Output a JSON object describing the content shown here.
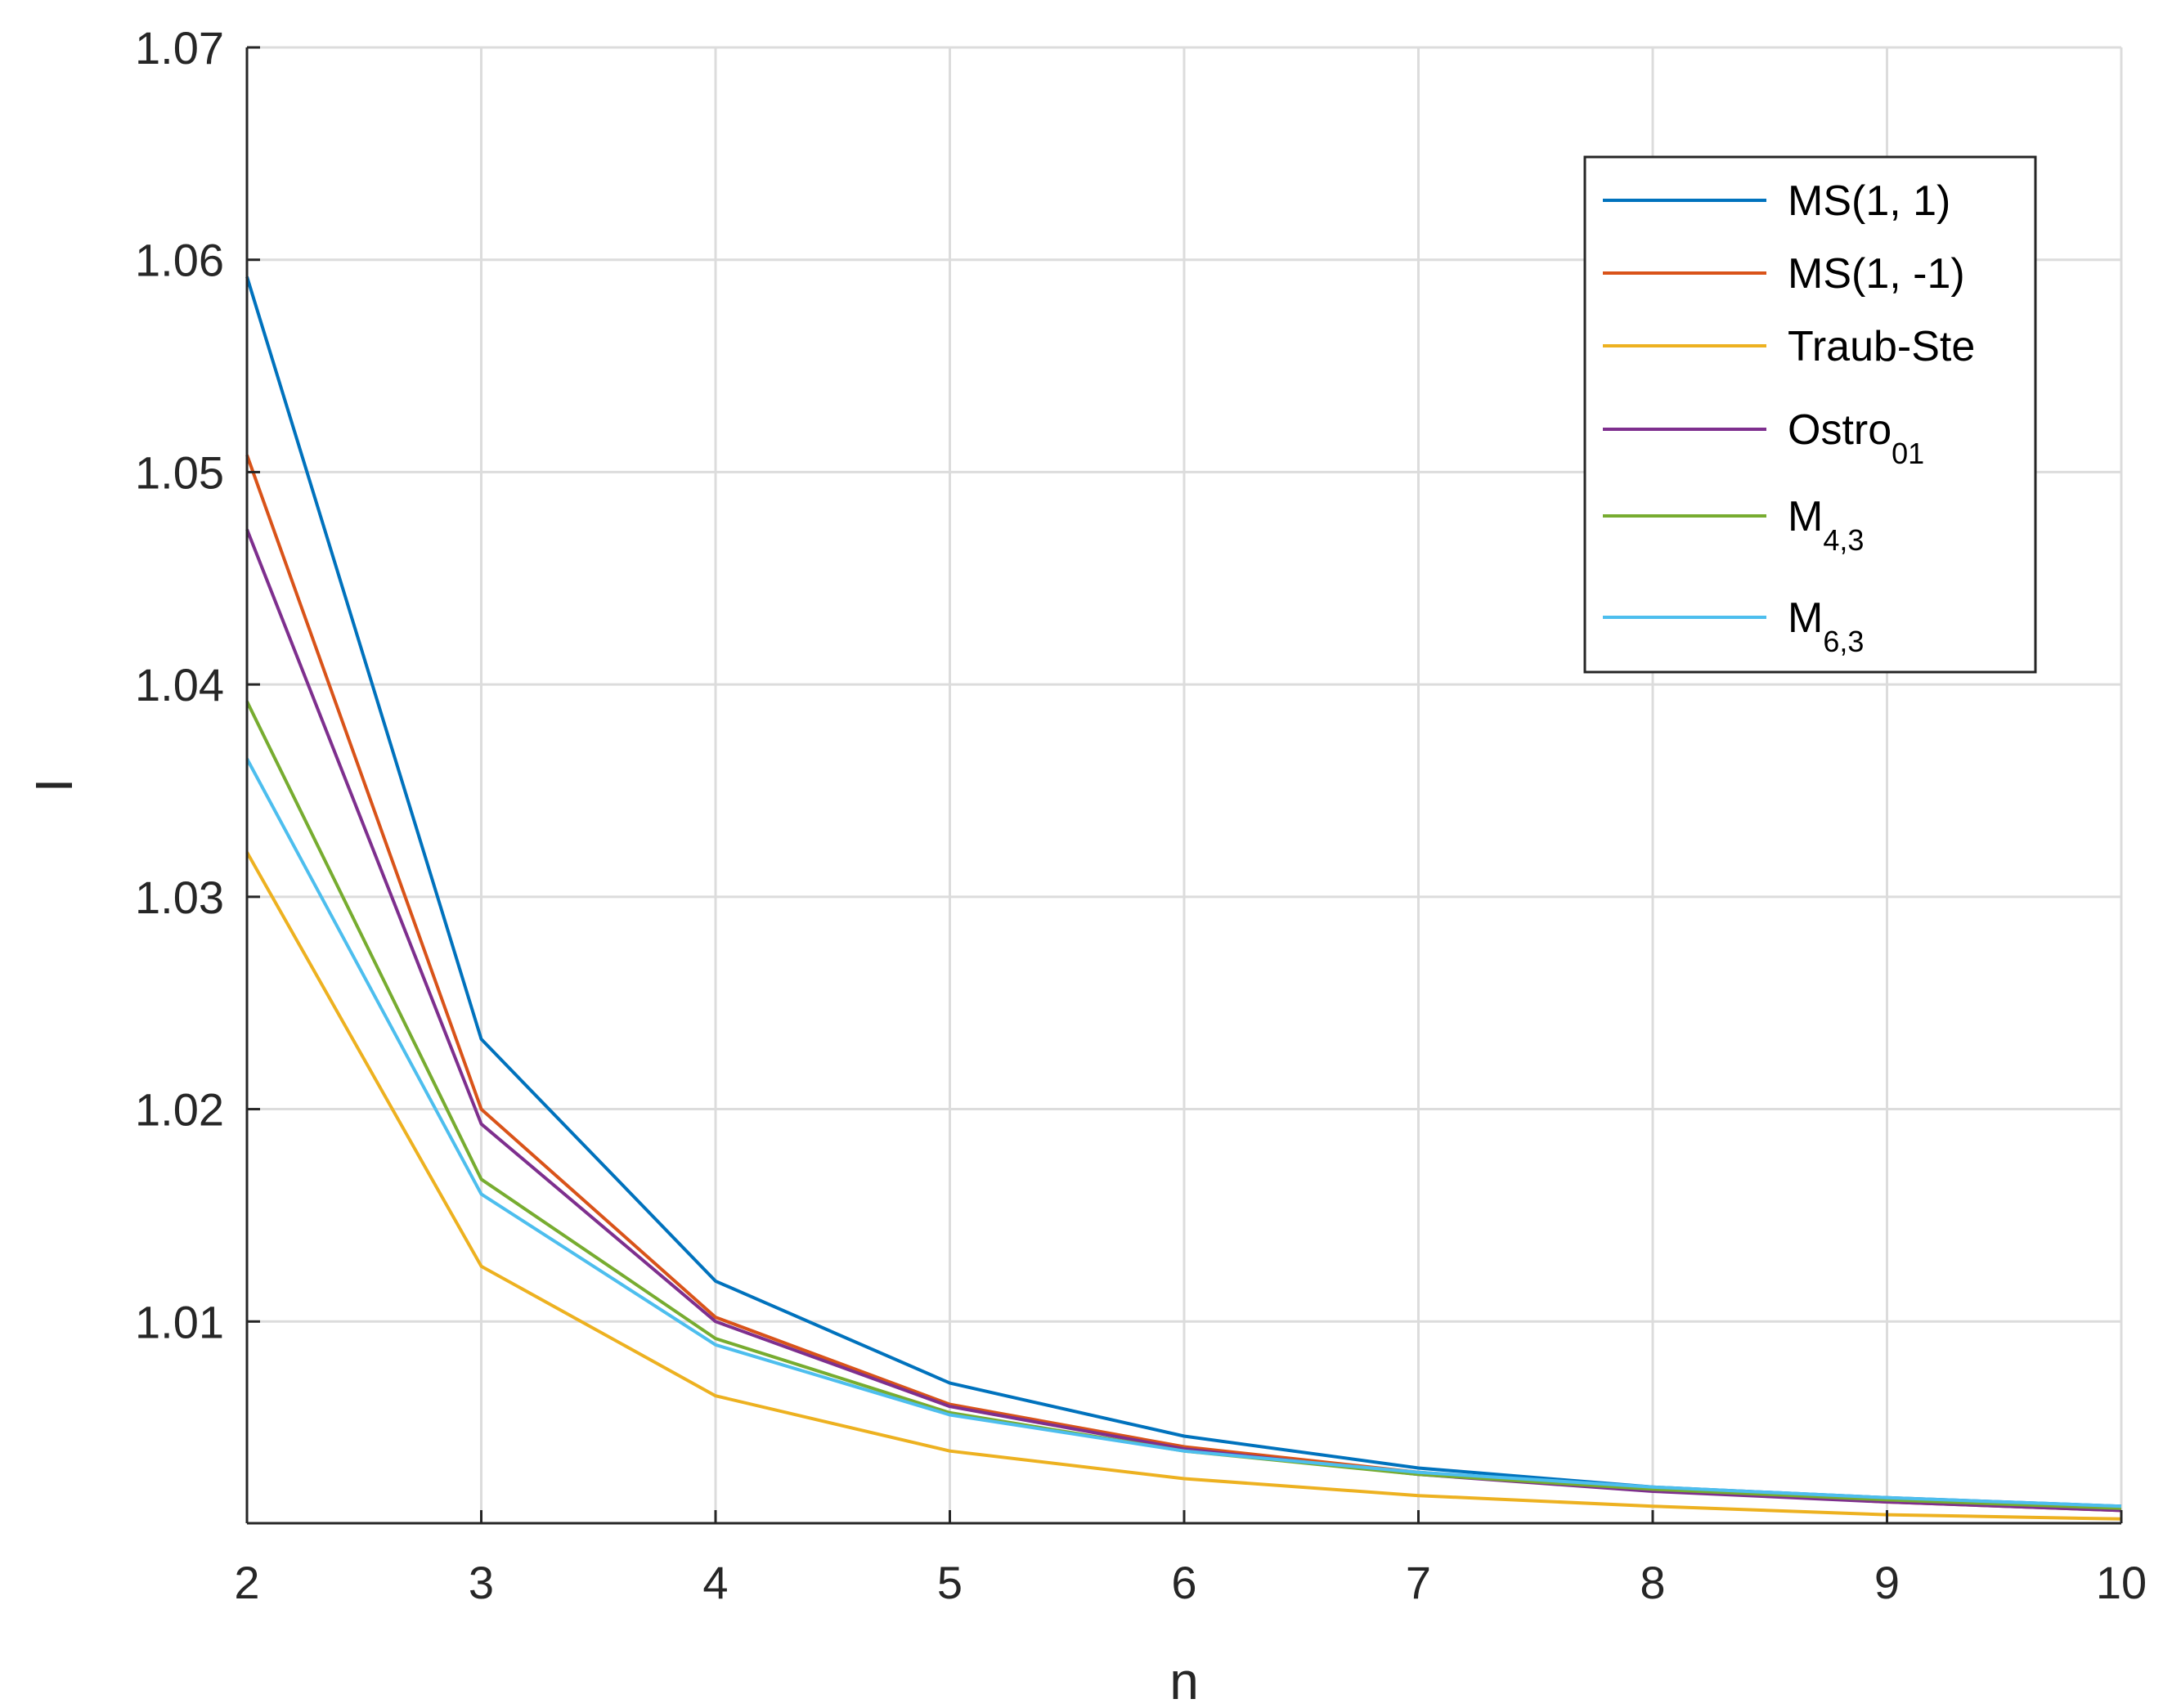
{
  "chart_data": {
    "type": "line",
    "xlabel": "n",
    "ylabel": "I",
    "xlim": [
      2,
      10
    ],
    "ylim": [
      1.0005,
      1.07
    ],
    "xticks": [
      "2",
      "3",
      "4",
      "5",
      "6",
      "7",
      "8",
      "9",
      "10"
    ],
    "yticks": [
      "1.01",
      "1.02",
      "1.03",
      "1.04",
      "1.05",
      "1.06",
      "1.07"
    ],
    "grid": true,
    "legend_position": "top-right",
    "x": [
      2,
      3,
      4,
      5,
      6,
      7,
      8,
      9,
      10
    ],
    "series": [
      {
        "name": "MS(1, 1)",
        "name_base": "MS(1, 1)",
        "name_sub": "",
        "color": "#0072BD",
        "values": [
          1.0592,
          1.0233,
          1.0119,
          1.0071,
          1.0046,
          1.0031,
          1.0022,
          1.0017,
          1.0013
        ]
      },
      {
        "name": "MS(1, -1)",
        "name_base": "MS(1, -1)",
        "name_sub": "",
        "color": "#D95319",
        "values": [
          1.0508,
          1.02,
          1.0102,
          1.0061,
          1.0041,
          1.0029,
          1.0021,
          1.0015,
          1.0011
        ]
      },
      {
        "name": "Traub-Ste",
        "name_base": "Traub-Ste",
        "name_sub": "",
        "color": "#EDB120",
        "values": [
          1.0321,
          1.0126,
          1.0065,
          1.0039,
          1.0026,
          1.0018,
          1.0013,
          1.0009,
          1.0007
        ]
      },
      {
        "name": "Ostro01",
        "name_base": "Ostro",
        "name_sub": "01",
        "color": "#7E2F8E",
        "values": [
          1.0473,
          1.0193,
          1.01,
          1.006,
          1.004,
          1.0028,
          1.002,
          1.0015,
          1.0011
        ]
      },
      {
        "name": "M4,3",
        "name_base": "M",
        "name_sub": "4,3",
        "color": "#77AC30",
        "values": [
          1.0392,
          1.0167,
          1.0092,
          1.0057,
          1.0039,
          1.0028,
          1.0021,
          1.0016,
          1.0012
        ]
      },
      {
        "name": "M6,3",
        "name_base": "M",
        "name_sub": "6,3",
        "color": "#4DBEEE",
        "values": [
          1.0365,
          1.016,
          1.0089,
          1.0056,
          1.0039,
          1.0029,
          1.0022,
          1.0017,
          1.0013
        ]
      }
    ]
  }
}
